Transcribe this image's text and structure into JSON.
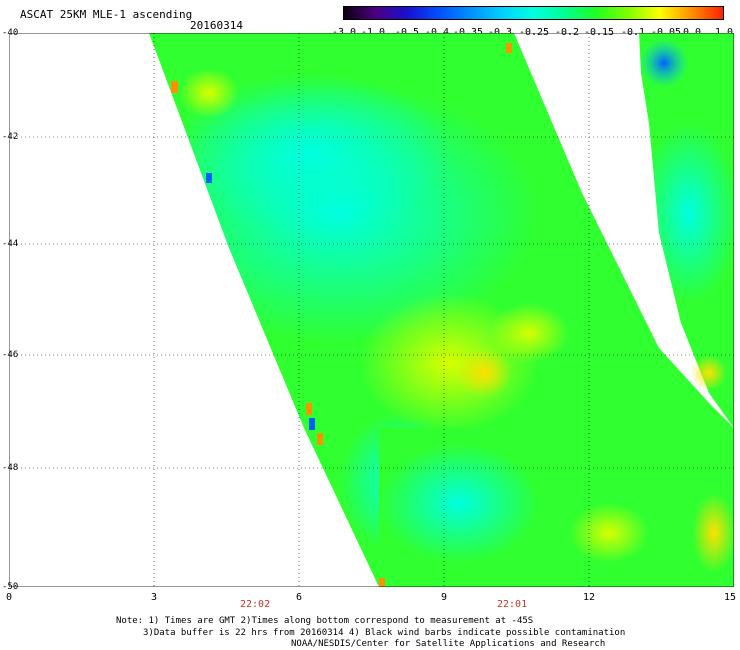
{
  "header": {
    "title": "ASCAT 25KM MLE-1 ascending",
    "date": "20160314"
  },
  "colorbar": {
    "labels": [
      "-3.0",
      "-1.0",
      "-0.5",
      "-0.4",
      "-0.35",
      "-0.3",
      "-0.25",
      "-0.2",
      "-0.15",
      "-0.1",
      "-0.05",
      "0.0",
      "1.0"
    ],
    "colors": [
      "#0a0010",
      "#4b0080",
      "#1a10d0",
      "#0050ff",
      "#0090ff",
      "#00d0ff",
      "#00ffe0",
      "#00ff90",
      "#20ff20",
      "#80ff00",
      "#ffff00",
      "#ff9000",
      "#ff2000"
    ]
  },
  "map": {
    "lat_labels": [
      "-40",
      "-42",
      "-44",
      "-46",
      "-48",
      "-50"
    ],
    "lon_labels": [
      "0",
      "3",
      "6",
      "9",
      "12",
      "15"
    ],
    "lat_range": [
      -40,
      -50
    ],
    "lon_range": [
      0,
      15
    ],
    "time_labels": [
      "22:02",
      "22:01"
    ],
    "swath_colors": {
      "cyan": "#00ffd8",
      "green": "#30ff30",
      "yellow_green": "#a8ff00",
      "yellow": "#ffff00",
      "orange": "#ff9000",
      "blue": "#0060ff"
    }
  },
  "notes": {
    "line1": "Note: 1) Times are GMT 2)Times along bottom correspond to measurement at -45S",
    "line2": "3)Data buffer is 22 hrs from 20160314 4) Black wind barbs indicate possible contamination",
    "line3": "NOAA/NESDIS/Center for Satellite Applications and Research"
  }
}
